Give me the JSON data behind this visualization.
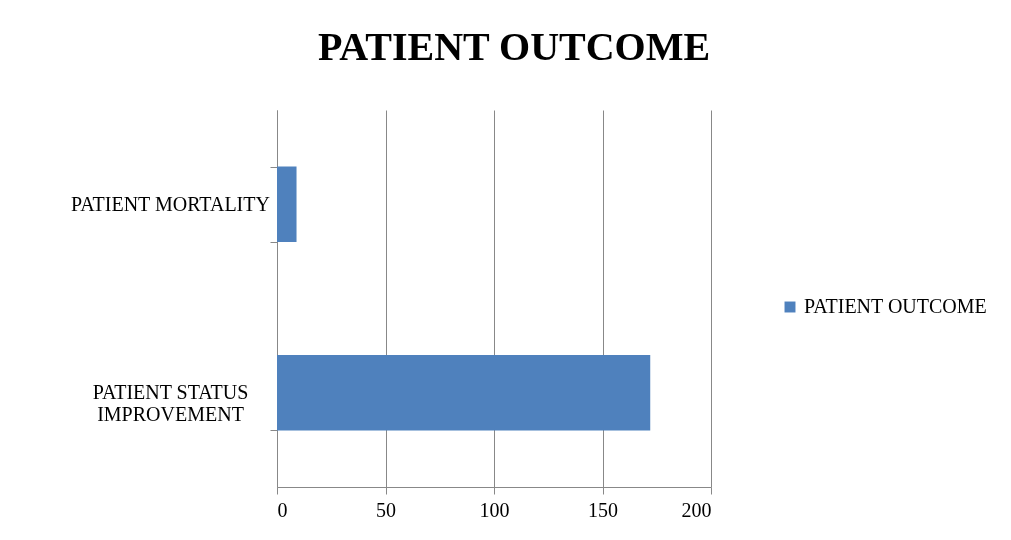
{
  "chart_data": {
    "type": "bar",
    "title": "PATIENT OUTCOME",
    "orientation": "horizontal",
    "categories": [
      "PATIENT MORTALITY",
      "PATIENT STATUS IMPROVEMENT"
    ],
    "series": [
      {
        "name": "PATIENT OUTCOME",
        "color": "#4f81bd",
        "values": [
          9,
          172
        ]
      }
    ],
    "xlim": [
      0,
      200
    ],
    "xticks": [
      0,
      50,
      100,
      150,
      200
    ],
    "grid": "x",
    "legend": "right"
  }
}
